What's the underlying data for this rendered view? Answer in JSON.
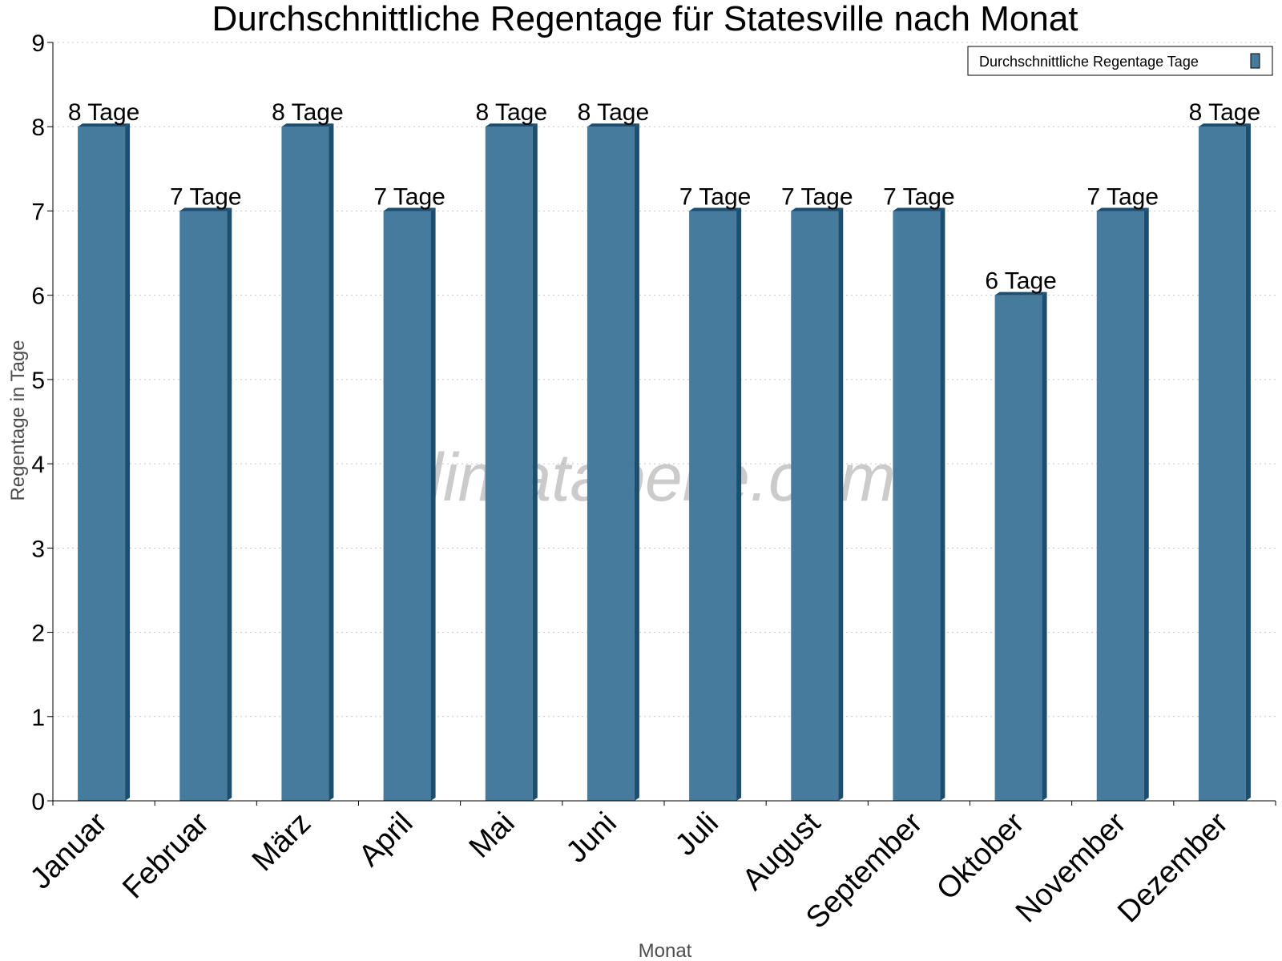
{
  "chart_data": {
    "type": "bar",
    "title": "Durchschnittliche Regentage für Statesville nach Monat",
    "xlabel": "Monat",
    "ylabel": "Regentage in Tage",
    "ylim": [
      0,
      9
    ],
    "yticks": [
      "0",
      "1",
      "2",
      "3",
      "4",
      "5",
      "6",
      "7",
      "8",
      "9"
    ],
    "grid": "horizontal dotted",
    "legend_position": "top-right",
    "categories": [
      "Januar",
      "Februar",
      "März",
      "April",
      "Mai",
      "Juni",
      "Juli",
      "August",
      "September",
      "Oktober",
      "November",
      "Dezember"
    ],
    "series": [
      {
        "name": "Durchschnittliche Regentage Tage",
        "values": [
          8,
          7,
          8,
          7,
          8,
          8,
          7,
          7,
          7,
          6,
          7,
          8
        ],
        "labels": [
          "8 Tage",
          "7 Tage",
          "8 Tage",
          "7 Tage",
          "8 Tage",
          "8 Tage",
          "7 Tage",
          "7 Tage",
          "7 Tage",
          "6 Tage",
          "7 Tage",
          "8 Tage"
        ],
        "color": "#467b9e",
        "side_color": "#1c4e6f"
      }
    ]
  },
  "watermark": "klimatabelle.com"
}
